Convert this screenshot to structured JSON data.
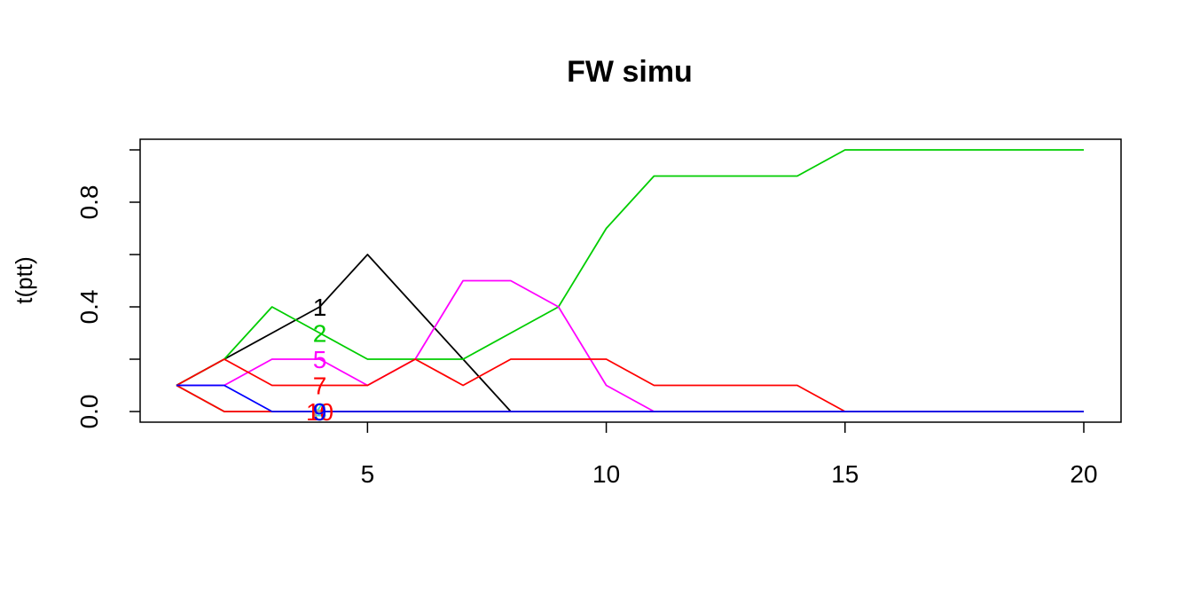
{
  "chart_data": {
    "type": "line",
    "title": "FW simu",
    "xlabel": "",
    "ylabel": "t(ptt)",
    "xlim": [
      1,
      20
    ],
    "ylim": [
      0,
      1
    ],
    "x_ticks": [
      5,
      10,
      15,
      20
    ],
    "y_ticks": [
      0.0,
      0.4,
      0.8
    ],
    "y_tick_labels": [
      "0.0",
      "0.4",
      "0.8"
    ],
    "grid": false,
    "label_x": 4,
    "x": [
      1,
      2,
      3,
      4,
      5,
      6,
      7,
      8,
      9,
      10,
      11,
      12,
      13,
      14,
      15,
      16,
      17,
      18,
      19,
      20
    ],
    "series": [
      {
        "label": "1",
        "color": "#000000",
        "values": [
          0.1,
          0.2,
          0.3,
          0.4,
          0.6,
          0.4,
          0.2,
          0.0,
          0.0,
          0.0,
          0.0,
          0.0,
          0.0,
          0.0,
          0.0,
          0.0,
          0.0,
          0.0,
          0.0,
          0.0
        ]
      },
      {
        "label": "2",
        "color": "#00cd00",
        "values": [
          0.1,
          0.2,
          0.4,
          0.3,
          0.2,
          0.2,
          0.2,
          0.3,
          0.4,
          0.7,
          0.9,
          0.9,
          0.9,
          0.9,
          1.0,
          1.0,
          1.0,
          1.0,
          1.0,
          1.0
        ]
      },
      {
        "label": "5",
        "color": "#ff00ff",
        "values": [
          0.1,
          0.1,
          0.2,
          0.2,
          0.1,
          0.2,
          0.5,
          0.5,
          0.4,
          0.1,
          0.0,
          0.0,
          0.0,
          0.0,
          0.0,
          0.0,
          0.0,
          0.0,
          0.0,
          0.0
        ]
      },
      {
        "label": "7",
        "color": "#ff0000",
        "values": [
          0.1,
          0.2,
          0.1,
          0.1,
          0.1,
          0.2,
          0.1,
          0.2,
          0.2,
          0.2,
          0.1,
          0.1,
          0.1,
          0.1,
          0.0,
          0.0,
          0.0,
          0.0,
          0.0,
          0.0
        ]
      },
      {
        "label": "3",
        "color": "#00cd00",
        "values": [
          0.1,
          0.0,
          0.0,
          0.0,
          0.0,
          0.0,
          0.0,
          0.0,
          0.0,
          0.0,
          0.0,
          0.0,
          0.0,
          0.0,
          0.0,
          0.0,
          0.0,
          0.0,
          0.0,
          0.0
        ]
      },
      {
        "label": "4",
        "color": "#28e2e5",
        "values": [
          0.1,
          0.0,
          0.0,
          0.0,
          0.0,
          0.0,
          0.0,
          0.0,
          0.0,
          0.0,
          0.0,
          0.0,
          0.0,
          0.0,
          0.0,
          0.0,
          0.0,
          0.0,
          0.0,
          0.0
        ]
      },
      {
        "label": "6",
        "color": "#f5c710",
        "values": [
          0.1,
          0.0,
          0.0,
          0.0,
          0.0,
          0.0,
          0.0,
          0.0,
          0.0,
          0.0,
          0.0,
          0.0,
          0.0,
          0.0,
          0.0,
          0.0,
          0.0,
          0.0,
          0.0,
          0.0
        ]
      },
      {
        "label": "8",
        "color": "#9e9e9e",
        "values": [
          0.1,
          0.0,
          0.0,
          0.0,
          0.0,
          0.0,
          0.0,
          0.0,
          0.0,
          0.0,
          0.0,
          0.0,
          0.0,
          0.0,
          0.0,
          0.0,
          0.0,
          0.0,
          0.0,
          0.0
        ]
      },
      {
        "label": "10",
        "color": "#ff0000",
        "values": [
          0.1,
          0.0,
          0.0,
          0.0,
          0.0,
          0.0,
          0.0,
          0.0,
          0.0,
          0.0,
          0.0,
          0.0,
          0.0,
          0.0,
          0.0,
          0.0,
          0.0,
          0.0,
          0.0,
          0.0
        ]
      },
      {
        "label": "9",
        "color": "#0000ff",
        "values": [
          0.1,
          0.1,
          0.0,
          0.0,
          0.0,
          0.0,
          0.0,
          0.0,
          0.0,
          0.0,
          0.0,
          0.0,
          0.0,
          0.0,
          0.0,
          0.0,
          0.0,
          0.0,
          0.0,
          0.0
        ]
      }
    ]
  }
}
